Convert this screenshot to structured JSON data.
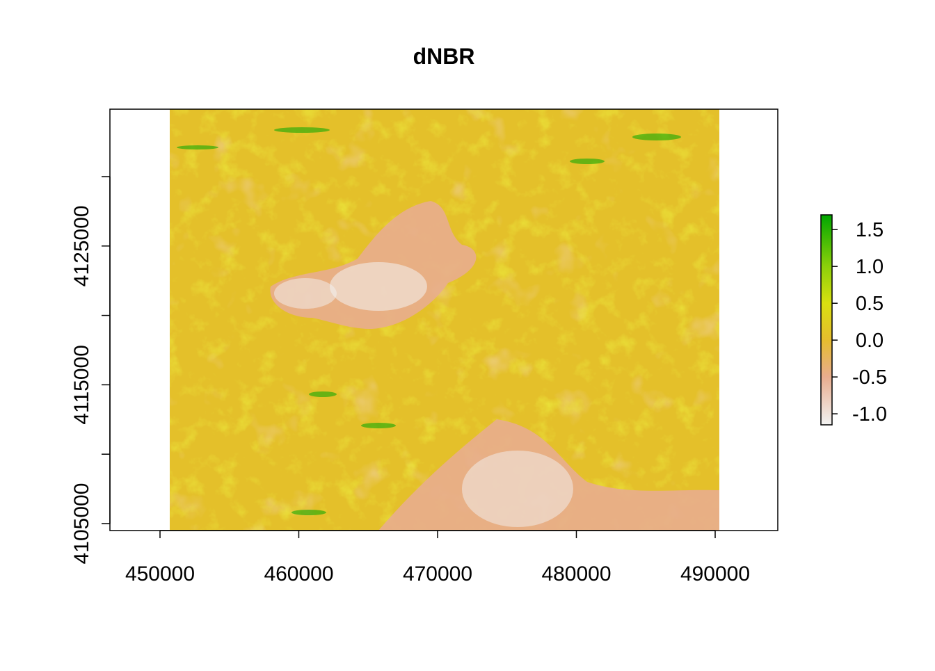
{
  "chart_data": {
    "type": "heatmap",
    "title": "dNBR",
    "xlabel": "",
    "ylabel": "",
    "x_ticks": [
      450000,
      460000,
      470000,
      480000,
      490000
    ],
    "x_tick_labels": [
      "450000",
      "460000",
      "470000",
      "480000",
      "490000"
    ],
    "y_ticks": [
      4105000,
      4110000,
      4115000,
      4120000,
      4125000,
      4130000
    ],
    "y_tick_labels": [
      "4105000",
      "",
      "4115000",
      "",
      "4125000",
      ""
    ],
    "xlim": [
      446400,
      494600
    ],
    "ylim": [
      4104600,
      4135000
    ],
    "raster_extent": {
      "xmin": 450700,
      "xmax": 490300,
      "ymin": 4104600,
      "ymax": 4135000
    },
    "grid": false,
    "legend": {
      "position": "right",
      "type": "continuous colorbar",
      "range": [
        -1.15,
        1.7
      ],
      "ticks": [
        -1.0,
        -0.5,
        0.0,
        0.5,
        1.0,
        1.5
      ],
      "tick_labels": [
        "-1.0",
        "-0.5",
        "0.0",
        "0.5",
        "1.0",
        "1.5"
      ]
    },
    "colors": {
      "stops": [
        {
          "value": -1.15,
          "color": "#f2f2f2"
        },
        {
          "value": -0.5,
          "color": "#e8ad8e"
        },
        {
          "value": 0.0,
          "color": "#e6bc2e"
        },
        {
          "value": 0.5,
          "color": "#d9e010"
        },
        {
          "value": 1.0,
          "color": "#8cd00a"
        },
        {
          "value": 1.7,
          "color": "#00a600"
        }
      ],
      "dominant": "#e4c02a"
    }
  }
}
